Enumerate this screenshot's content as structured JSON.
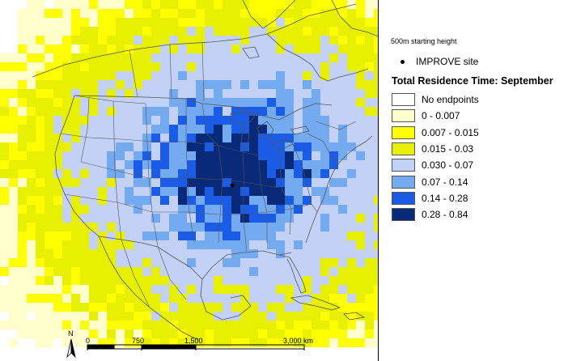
{
  "legend": {
    "caption": "500m starting height",
    "site_label": "IMPROVE site",
    "title": "Total Residence Time: September",
    "classes": [
      {
        "label": "No endpoints",
        "color": "#ffffff"
      },
      {
        "label": "0 - 0.007",
        "color": "#ffffcc"
      },
      {
        "label": "0.007 - 0.015",
        "color": "#ffff00"
      },
      {
        "label": "0.015 - 0.03",
        "color": "#e6f000"
      },
      {
        "label": "0.030 - 0.07",
        "color": "#c2d1f5"
      },
      {
        "label": "0.07 - 0.14",
        "color": "#73aaf0"
      },
      {
        "label": "0.14 - 0.28",
        "color": "#1a5ce6"
      },
      {
        "label": "0.28 - 0.84",
        "color": "#082a78"
      }
    ]
  },
  "scale_bar": {
    "labels": [
      "0",
      "750",
      "1,500",
      "3,000 km"
    ]
  },
  "north_arrow": {
    "label": "N"
  },
  "colors": {
    "land_lines": "#555555",
    "site_marker": "#000000"
  }
}
